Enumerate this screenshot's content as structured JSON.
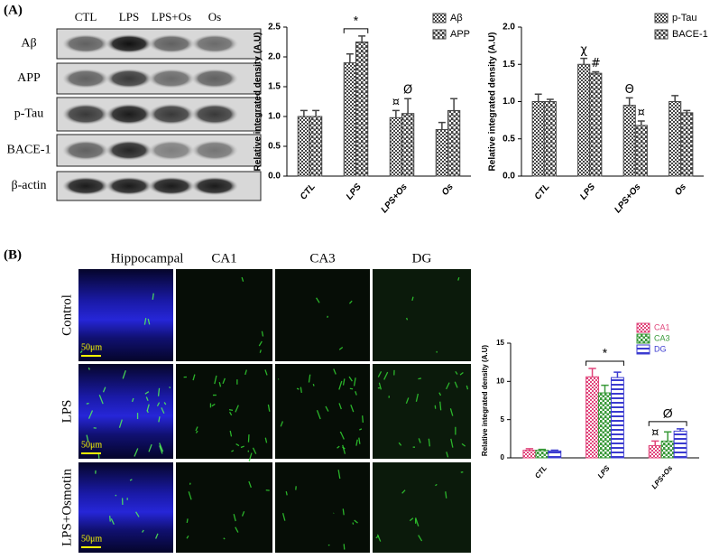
{
  "panel_labels": [
    "(A)",
    "(B)"
  ],
  "blot": {
    "columns": [
      "CTL",
      "LPS",
      "LPS+Os",
      "Os"
    ],
    "rows": [
      "Aβ",
      "APP",
      "p-Tau",
      "BACE-1",
      "β-actin"
    ]
  },
  "images": {
    "columns": [
      "Hippocampal",
      "CA1",
      "CA3",
      "DG"
    ],
    "rows": [
      "Control",
      "LPS",
      "LPS+Osmotin"
    ],
    "scale_bar": "50μm"
  },
  "chart_data": [
    {
      "type": "bar",
      "y_label": "Relative integrated density (A.U)",
      "categories": [
        "CTL",
        "LPS",
        "LPS+Os",
        "Os"
      ],
      "series": [
        {
          "name": "Aβ",
          "color": "#444444",
          "values": [
            1.0,
            1.9,
            0.98,
            0.78
          ],
          "errors": [
            0.1,
            0.15,
            0.12,
            0.12
          ]
        },
        {
          "name": "APP",
          "color": "#444444",
          "values": [
            1.0,
            2.25,
            1.05,
            1.1
          ],
          "errors": [
            0.1,
            0.1,
            0.25,
            0.2
          ]
        }
      ],
      "ylim": [
        0,
        2.5
      ],
      "yticks": [
        {
          "value": 0,
          "label": "0.0"
        },
        0.5,
        {
          "value": 1,
          "label": "1.0"
        },
        1.5,
        {
          "value": 2,
          "label": "2.0"
        },
        2.5
      ],
      "legend": "top-right",
      "annotations": [
        {
          "text": "*",
          "category": "LPS"
        },
        {
          "text": "¤",
          "category": "LPS+Os",
          "series": "Aβ"
        },
        {
          "text": "Ø",
          "category": "LPS+Os",
          "series": "APP"
        }
      ]
    },
    {
      "type": "bar",
      "y_label": "Relative integrated density (A.U)",
      "categories": [
        "CTL",
        "LPS",
        "LPS+Os",
        "Os"
      ],
      "series": [
        {
          "name": "p-Tau",
          "color": "#444444",
          "values": [
            1.0,
            1.5,
            0.95,
            1.0
          ],
          "errors": [
            0.1,
            0.08,
            0.1,
            0.08
          ]
        },
        {
          "name": "BACE-1",
          "color": "#444444",
          "values": [
            1.0,
            1.38,
            0.68,
            0.85
          ],
          "errors": [
            0.03,
            0.02,
            0.06,
            0.03
          ]
        }
      ],
      "ylim": [
        0,
        2.0
      ],
      "yticks": [
        {
          "value": 0,
          "label": "0.0"
        },
        0.5,
        {
          "value": 1,
          "label": "1.0"
        },
        1.5,
        {
          "value": 2,
          "label": "2.0"
        }
      ],
      "legend": "top-right",
      "annotations": [
        {
          "text": "χ",
          "category": "LPS",
          "series": "p-Tau"
        },
        {
          "text": "#",
          "category": "LPS",
          "series": "BACE-1"
        },
        {
          "text": "Θ",
          "category": "LPS+Os",
          "series": "p-Tau"
        },
        {
          "text": "¤",
          "category": "LPS+Os",
          "series": "BACE-1"
        }
      ]
    },
    {
      "type": "bar",
      "y_label": "Relative integrated density (A.U)",
      "categories": [
        "CTL",
        "LPS",
        "LPS+Os"
      ],
      "series": [
        {
          "name": "CA1",
          "color": "#e0457b",
          "values": [
            1.0,
            10.6,
            1.6
          ],
          "errors": [
            0.2,
            1.1,
            0.6
          ]
        },
        {
          "name": "CA3",
          "color": "#3a9a3a",
          "values": [
            1.0,
            8.5,
            2.2
          ],
          "errors": [
            0.1,
            1.0,
            1.2
          ]
        },
        {
          "name": "DG",
          "color": "#3b3bd0",
          "values": [
            0.9,
            10.5,
            3.5
          ],
          "errors": [
            0.1,
            0.7,
            0.3
          ]
        }
      ],
      "ylim": [
        0,
        15
      ],
      "yticks": [
        0,
        5,
        10,
        15
      ],
      "legend": "top-right",
      "annotations": [
        {
          "text": "*",
          "category": "LPS"
        },
        {
          "text": "¤",
          "category": "LPS+Os",
          "series": "CA1"
        },
        {
          "text": "Ø",
          "category": "LPS+Os"
        }
      ]
    }
  ]
}
